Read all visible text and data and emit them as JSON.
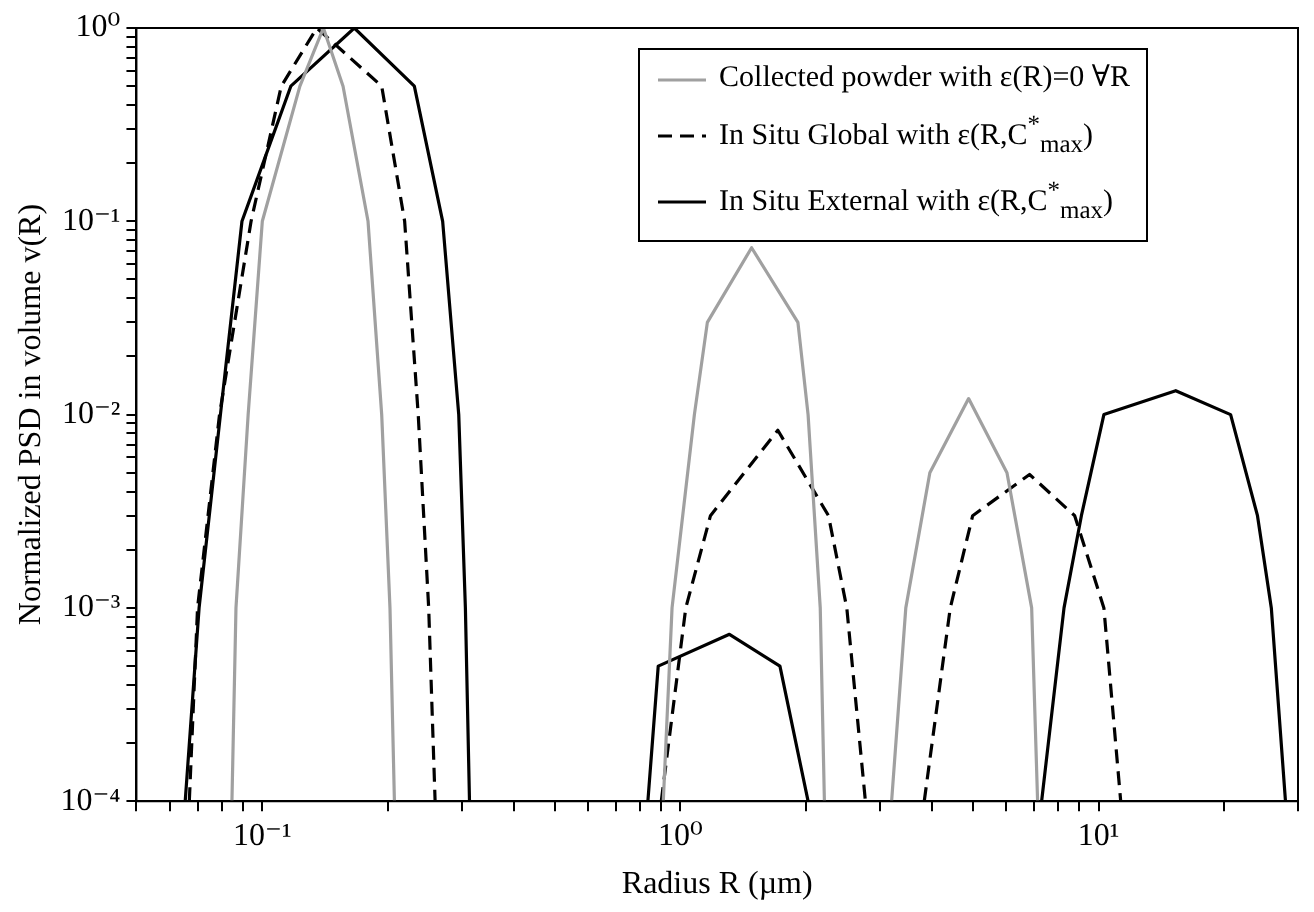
{
  "chart_data": {
    "type": "line",
    "xlabel": "Radius R (µm)",
    "ylabel": "Normalized PSD in volume v(R)",
    "log": "xy",
    "grid": false,
    "legend": "top right",
    "xlim": [
      0.05,
      30
    ],
    "ylim": [
      0.0001,
      1
    ],
    "xticks": [
      {
        "value": 0.05,
        "label": null
      },
      {
        "value": 0.06,
        "label": null
      },
      {
        "value": 0.07,
        "label": null
      },
      {
        "value": 0.08,
        "label": null
      },
      {
        "value": 0.09,
        "label": null
      },
      {
        "value": 0.1,
        "label": "10⁻¹"
      },
      {
        "value": 0.2,
        "label": null
      },
      {
        "value": 0.3,
        "label": null
      },
      {
        "value": 0.4,
        "label": null
      },
      {
        "value": 0.5,
        "label": null
      },
      {
        "value": 0.6,
        "label": null
      },
      {
        "value": 0.7,
        "label": null
      },
      {
        "value": 0.8,
        "label": null
      },
      {
        "value": 0.9,
        "label": null
      },
      {
        "value": 1,
        "label": "10⁰"
      },
      {
        "value": 2,
        "label": null
      },
      {
        "value": 3,
        "label": null
      },
      {
        "value": 4,
        "label": null
      },
      {
        "value": 5,
        "label": null
      },
      {
        "value": 6,
        "label": null
      },
      {
        "value": 7,
        "label": null
      },
      {
        "value": 8,
        "label": null
      },
      {
        "value": 9,
        "label": null
      },
      {
        "value": 10,
        "label": "10¹"
      },
      {
        "value": 20,
        "label": null
      },
      {
        "value": 30,
        "label": null
      }
    ],
    "yticks": [
      {
        "value": 0.0001,
        "label": "10⁻⁴"
      },
      {
        "value": 0.0002,
        "label": null
      },
      {
        "value": 0.0003,
        "label": null
      },
      {
        "value": 0.0004,
        "label": null
      },
      {
        "value": 0.0005,
        "label": null
      },
      {
        "value": 0.0006,
        "label": null
      },
      {
        "value": 0.0007,
        "label": null
      },
      {
        "value": 0.0008,
        "label": null
      },
      {
        "value": 0.0009,
        "label": null
      },
      {
        "value": 0.001,
        "label": "10⁻³"
      },
      {
        "value": 0.002,
        "label": null
      },
      {
        "value": 0.003,
        "label": null
      },
      {
        "value": 0.004,
        "label": null
      },
      {
        "value": 0.005,
        "label": null
      },
      {
        "value": 0.006,
        "label": null
      },
      {
        "value": 0.007,
        "label": null
      },
      {
        "value": 0.008,
        "label": null
      },
      {
        "value": 0.009,
        "label": null
      },
      {
        "value": 0.01,
        "label": "10⁻²"
      },
      {
        "value": 0.02,
        "label": null
      },
      {
        "value": 0.03,
        "label": null
      },
      {
        "value": 0.04,
        "label": null
      },
      {
        "value": 0.05,
        "label": null
      },
      {
        "value": 0.06,
        "label": null
      },
      {
        "value": 0.07,
        "label": null
      },
      {
        "value": 0.08,
        "label": null
      },
      {
        "value": 0.09,
        "label": null
      },
      {
        "value": 0.1,
        "label": "10⁻¹"
      },
      {
        "value": 0.2,
        "label": null
      },
      {
        "value": 0.3,
        "label": null
      },
      {
        "value": 0.4,
        "label": null
      },
      {
        "value": 0.5,
        "label": null
      },
      {
        "value": 0.6,
        "label": null
      },
      {
        "value": 0.7,
        "label": null
      },
      {
        "value": 0.8,
        "label": null
      },
      {
        "value": 0.9,
        "label": null
      },
      {
        "value": 1,
        "label": "10⁰"
      }
    ],
    "series": [
      {
        "name": "Collected powder with  ε(R)=0 ∀R",
        "color": "#a0a0a0",
        "line_style": "solid",
        "x": [
          0.0846,
          0.0865,
          0.0925,
          0.1,
          0.123,
          0.14,
          0.156,
          0.179,
          0.193,
          0.202,
          0.207,
          0.5,
          0.91,
          0.955,
          1.08,
          1.16,
          1.48,
          1.91,
          2.02,
          2.16,
          2.21,
          2.8,
          3.2,
          3.46,
          3.95,
          4.89,
          6.04,
          6.92,
          7.15
        ],
        "values": [
          0.0001,
          0.001,
          0.01,
          0.1,
          0.5,
          1,
          0.5,
          0.1,
          0.01,
          0.001,
          0.0001,
          null,
          0.0001,
          0.001,
          0.01,
          0.03,
          0.073,
          0.03,
          0.01,
          0.001,
          0.0001,
          null,
          0.0001,
          0.001,
          0.005,
          0.0121,
          0.005,
          0.001,
          0.0001
        ]
      },
      {
        "name": "In Situ Global with ε(R,C$^{*}$$_{max}$)",
        "color": "#000000",
        "line_style": "dashed",
        "x": [
          0.0669,
          0.07,
          0.079,
          0.094,
          0.111,
          0.135,
          0.193,
          0.219,
          0.236,
          0.25,
          0.259,
          0.6,
          0.9,
          1.03,
          1.18,
          1.71,
          2.26,
          2.5,
          2.77,
          3.3,
          3.83,
          4.42,
          5,
          6.84,
          8.77,
          10.3,
          11.3
        ],
        "values": [
          0.0001,
          0.001,
          0.01,
          0.1,
          0.5,
          1,
          0.5,
          0.1,
          0.01,
          0.001,
          0.0001,
          null,
          0.0001,
          0.001,
          0.003,
          0.0083,
          0.003,
          0.001,
          0.0001,
          null,
          0.0001,
          0.001,
          0.003,
          0.0049,
          0.003,
          0.001,
          0.0001
        ]
      },
      {
        "name": "In Situ External with ε(R,C$^{*}$$_{max}$)",
        "color": "#000000",
        "line_style": "solid",
        "x": [
          0.0654,
          0.0706,
          0.0794,
          0.0894,
          0.117,
          0.166,
          0.231,
          0.27,
          0.295,
          0.306,
          0.313,
          0.6,
          0.836,
          0.885,
          1.31,
          1.73,
          2.02,
          4.5,
          7.31,
          8.27,
          9.1,
          10.3,
          15.3,
          20.7,
          24,
          25.9,
          28
        ],
        "values": [
          0.0001,
          0.001,
          0.01,
          0.1,
          0.5,
          1,
          0.5,
          0.1,
          0.01,
          0.001,
          0.0001,
          null,
          0.0001,
          0.0005,
          0.00073,
          0.0005,
          0.0001,
          null,
          0.0001,
          0.001,
          0.003,
          0.01,
          0.0133,
          0.01,
          0.003,
          0.001,
          0.0001
        ]
      }
    ]
  }
}
